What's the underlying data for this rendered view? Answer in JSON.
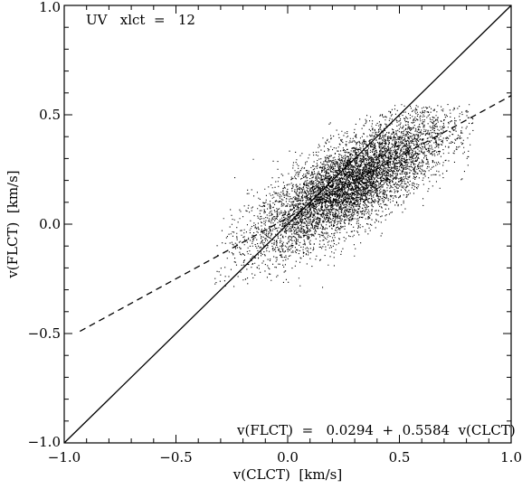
{
  "chart_data": {
    "type": "scatter",
    "annotation_top": "UV   xlct  =   12",
    "annotation_bottom": "v(FLCT)  =   0.0294  +  0.5584  v(CLCT)",
    "xlabel": "v(CLCT)  [km/s]",
    "ylabel": "v(FLCT)  [km/s]",
    "xlim": [
      -1.0,
      1.0
    ],
    "ylim": [
      -1.0,
      1.0
    ],
    "x_ticks": [
      "−1.0",
      "−0.5",
      "0.0",
      "0.5",
      "1.0"
    ],
    "y_ticks": [
      "−1.0",
      "−0.5",
      "0.0",
      "0.5",
      "1.0"
    ],
    "x_tick_values": [
      -1.0,
      -0.5,
      0.0,
      0.5,
      1.0
    ],
    "y_tick_values": [
      -1.0,
      -0.5,
      0.0,
      0.5,
      1.0
    ],
    "grid": false,
    "reference_line": {
      "style": "solid",
      "slope": 1.0,
      "intercept": 0.0
    },
    "fit_line": {
      "style": "dashed",
      "slope": 0.5584,
      "intercept": 0.0294
    },
    "point_cloud": {
      "n_points": 9000,
      "x_range": [
        -0.33,
        0.83
      ],
      "y_range": [
        -0.3,
        0.55
      ],
      "x_mean": 0.28,
      "x_std": 0.22,
      "y_relation": {
        "slope": 0.5584,
        "intercept": 0.0294,
        "scatter_std": 0.1
      },
      "color": "#000000"
    }
  }
}
